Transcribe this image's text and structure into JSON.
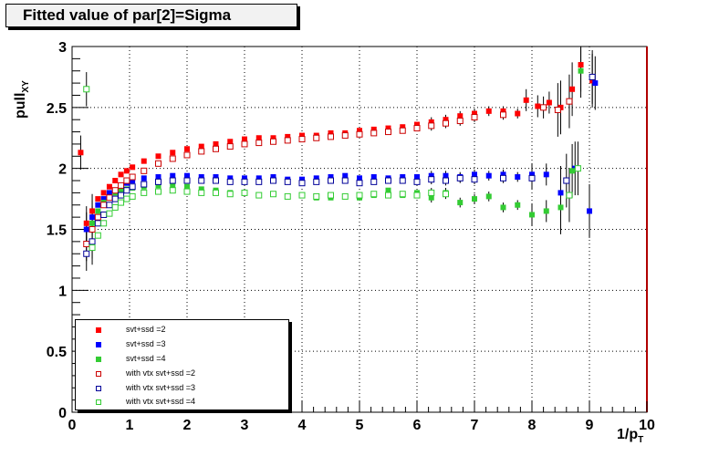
{
  "title": "Fitted value of par[2]=Sigma",
  "chart_data": {
    "type": "scatter",
    "title": "Fitted value of par[2]=Sigma",
    "xlabel": "1/p_T",
    "ylabel": "pull_XY",
    "xlim": [
      0,
      10
    ],
    "ylim": [
      0,
      3
    ],
    "grid": true,
    "legend_position": "bottom-left",
    "x_ticks": [
      "0",
      "1",
      "2",
      "3",
      "4",
      "5",
      "6",
      "7",
      "8",
      "9",
      "10"
    ],
    "y_ticks": [
      "0",
      "0.5",
      "1",
      "1.5",
      "2",
      "2.5",
      "3"
    ],
    "series": [
      {
        "name": "svt+ssd =2",
        "color": "#ff0000",
        "marker": "filled-square",
        "x": [
          0.15,
          0.25,
          0.35,
          0.45,
          0.55,
          0.65,
          0.75,
          0.85,
          0.95,
          1.05,
          1.25,
          1.5,
          1.75,
          2.0,
          2.25,
          2.5,
          2.75,
          3.0,
          3.25,
          3.5,
          3.75,
          4.0,
          4.25,
          4.5,
          4.75,
          5.0,
          5.25,
          5.5,
          5.75,
          6.0,
          6.25,
          6.5,
          6.75,
          7.0,
          7.25,
          7.5,
          7.75,
          7.9,
          8.1,
          8.3,
          8.5,
          8.7,
          8.85,
          9.05
        ],
        "y": [
          2.13,
          1.55,
          1.65,
          1.75,
          1.8,
          1.85,
          1.9,
          1.95,
          1.98,
          2.01,
          2.06,
          2.1,
          2.13,
          2.16,
          2.18,
          2.2,
          2.22,
          2.24,
          2.25,
          2.25,
          2.26,
          2.27,
          2.27,
          2.29,
          2.29,
          2.31,
          2.32,
          2.33,
          2.34,
          2.36,
          2.38,
          2.4,
          2.43,
          2.45,
          2.47,
          2.47,
          2.45,
          2.56,
          2.51,
          2.54,
          2.5,
          2.65,
          2.85,
          2.72
        ]
      },
      {
        "name": "svt+ssd =3",
        "color": "#0000ff",
        "marker": "filled-square",
        "x": [
          0.25,
          0.35,
          0.45,
          0.55,
          0.65,
          0.75,
          0.85,
          0.95,
          1.05,
          1.25,
          1.5,
          1.75,
          2.0,
          2.25,
          2.5,
          2.75,
          3.0,
          3.25,
          3.5,
          3.75,
          4.0,
          4.25,
          4.5,
          4.75,
          5.0,
          5.25,
          5.5,
          5.75,
          6.0,
          6.25,
          6.5,
          6.75,
          7.0,
          7.25,
          7.5,
          7.75,
          8.0,
          8.25,
          8.5,
          8.75,
          9.0,
          9.1
        ],
        "y": [
          1.5,
          1.6,
          1.7,
          1.75,
          1.8,
          1.82,
          1.85,
          1.88,
          1.9,
          1.92,
          1.93,
          1.94,
          1.94,
          1.93,
          1.93,
          1.92,
          1.92,
          1.92,
          1.93,
          1.91,
          1.91,
          1.92,
          1.93,
          1.94,
          1.92,
          1.93,
          1.92,
          1.93,
          1.93,
          1.94,
          1.94,
          1.93,
          1.95,
          1.94,
          1.95,
          1.93,
          1.95,
          1.95,
          1.8,
          2.0,
          1.65,
          2.7
        ]
      },
      {
        "name": "svt+ssd =4",
        "color": "#33cc33",
        "marker": "filled-square",
        "x": [
          0.35,
          0.45,
          0.55,
          0.65,
          0.75,
          0.85,
          0.95,
          1.05,
          1.25,
          1.5,
          1.75,
          2.0,
          2.25,
          2.5,
          2.75,
          3.0,
          3.25,
          3.5,
          3.75,
          4.0,
          4.25,
          4.5,
          4.75,
          5.0,
          5.25,
          5.5,
          5.75,
          6.0,
          6.25,
          6.5,
          6.75,
          7.0,
          7.25,
          7.5,
          7.75,
          8.0,
          8.25,
          8.5,
          8.7,
          8.85
        ],
        "y": [
          1.55,
          1.65,
          1.72,
          1.76,
          1.8,
          1.82,
          1.83,
          1.84,
          1.85,
          1.86,
          1.86,
          1.85,
          1.83,
          1.82,
          1.8,
          1.8,
          1.78,
          1.79,
          1.77,
          1.78,
          1.76,
          1.76,
          1.77,
          1.76,
          1.78,
          1.82,
          1.78,
          1.8,
          1.76,
          1.8,
          1.72,
          1.75,
          1.77,
          1.68,
          1.7,
          1.62,
          1.65,
          1.68,
          1.98,
          2.8
        ]
      },
      {
        "name": "with vtx svt+ssd =2",
        "color": "#cc0000",
        "marker": "open-square",
        "x": [
          0.25,
          0.35,
          0.45,
          0.55,
          0.65,
          0.75,
          0.85,
          0.95,
          1.05,
          1.25,
          1.5,
          1.75,
          2.0,
          2.25,
          2.5,
          2.75,
          3.0,
          3.25,
          3.5,
          3.75,
          4.0,
          4.25,
          4.5,
          4.75,
          5.0,
          5.25,
          5.5,
          5.75,
          6.0,
          6.25,
          6.5,
          6.75,
          7.0,
          7.5,
          8.2,
          8.45,
          8.65
        ],
        "y": [
          1.38,
          1.5,
          1.6,
          1.7,
          1.76,
          1.82,
          1.86,
          1.9,
          1.93,
          1.98,
          2.04,
          2.08,
          2.11,
          2.14,
          2.16,
          2.18,
          2.2,
          2.21,
          2.22,
          2.23,
          2.24,
          2.25,
          2.26,
          2.27,
          2.28,
          2.29,
          2.3,
          2.31,
          2.33,
          2.35,
          2.37,
          2.39,
          2.42,
          2.44,
          2.5,
          2.48,
          2.55
        ]
      },
      {
        "name": "with vtx svt+ssd =3",
        "color": "#000099",
        "marker": "open-square",
        "x": [
          0.25,
          0.35,
          0.45,
          0.55,
          0.65,
          0.75,
          0.85,
          0.95,
          1.05,
          1.25,
          1.5,
          1.75,
          2.0,
          2.25,
          2.5,
          2.75,
          3.0,
          3.25,
          3.5,
          3.75,
          4.0,
          4.25,
          4.5,
          4.75,
          5.0,
          5.25,
          5.5,
          5.75,
          6.0,
          6.25,
          6.5,
          6.75,
          7.0,
          7.5,
          8.0,
          8.6,
          9.05
        ],
        "y": [
          1.3,
          1.4,
          1.55,
          1.62,
          1.7,
          1.75,
          1.78,
          1.82,
          1.85,
          1.87,
          1.89,
          1.9,
          1.9,
          1.9,
          1.9,
          1.89,
          1.89,
          1.89,
          1.9,
          1.89,
          1.88,
          1.89,
          1.9,
          1.9,
          1.88,
          1.89,
          1.9,
          1.9,
          1.89,
          1.91,
          1.9,
          1.92,
          1.91,
          1.92,
          1.92,
          1.9,
          2.75
        ]
      },
      {
        "name": "with vtx svt+ssd =4",
        "color": "#33cc33",
        "marker": "open-square",
        "x": [
          0.25,
          0.35,
          0.45,
          0.55,
          0.65,
          0.75,
          0.85,
          0.95,
          1.05,
          1.25,
          1.5,
          1.75,
          2.0,
          2.25,
          2.5,
          2.75,
          3.0,
          3.25,
          3.5,
          3.75,
          4.0,
          4.25,
          4.5,
          4.75,
          5.0,
          5.25,
          5.5,
          5.75,
          6.0,
          6.25,
          6.5,
          8.65,
          8.8
        ],
        "y": [
          2.65,
          1.35,
          1.45,
          1.55,
          1.63,
          1.68,
          1.72,
          1.75,
          1.77,
          1.8,
          1.81,
          1.82,
          1.81,
          1.8,
          1.8,
          1.79,
          1.8,
          1.78,
          1.79,
          1.77,
          1.78,
          1.77,
          1.78,
          1.77,
          1.78,
          1.79,
          1.78,
          1.79,
          1.78,
          1.8,
          1.79,
          1.78,
          2.0
        ]
      }
    ]
  }
}
